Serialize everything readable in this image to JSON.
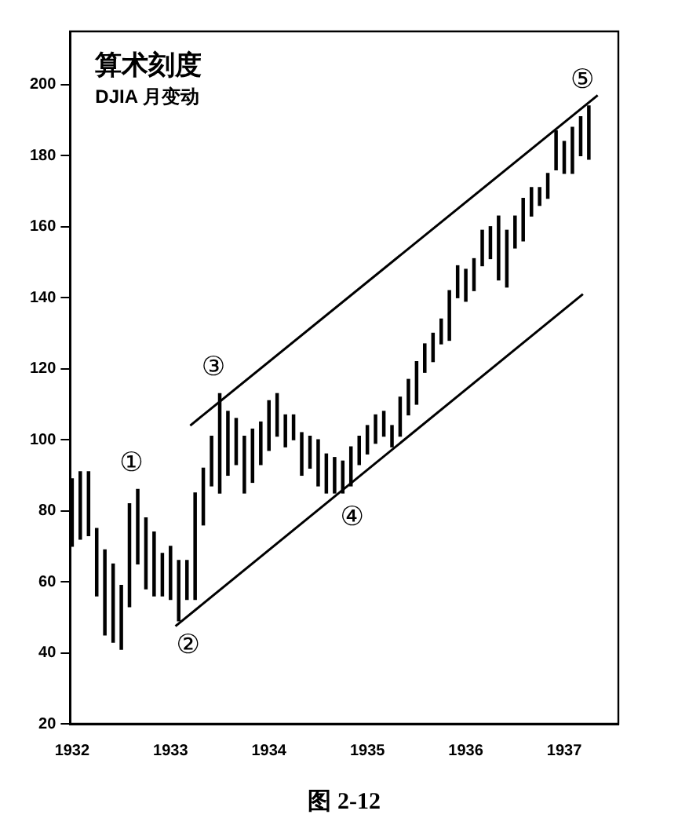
{
  "chart_data": {
    "type": "bar",
    "title": "算术刻度",
    "subtitle": "DJIA 月变动",
    "annotations": [
      {
        "text": "①",
        "x": 1932.667,
        "y": 86
      },
      {
        "text": "②",
        "x": 1933.083,
        "y": 49
      },
      {
        "text": "③",
        "x": 1933.5,
        "y": 113
      },
      {
        "text": "④",
        "x": 1934.75,
        "y": 85
      },
      {
        "text": "⑤",
        "x": 1937.25,
        "y": 194
      },
      "图 2-12"
    ],
    "x": [
      1932,
      1932.083,
      1932.167,
      1932.25,
      1932.333,
      1932.417,
      1932.5,
      1932.583,
      1932.667,
      1932.75,
      1932.833,
      1932.917,
      1933,
      1933.083,
      1933.167,
      1933.25,
      1933.333,
      1933.417,
      1933.5,
      1933.583,
      1933.667,
      1933.75,
      1933.833,
      1933.917,
      1934,
      1934.083,
      1934.167,
      1934.25,
      1934.333,
      1934.417,
      1934.5,
      1934.583,
      1934.667,
      1934.75,
      1934.833,
      1934.917,
      1935,
      1935.083,
      1935.167,
      1935.25,
      1935.333,
      1935.417,
      1935.5,
      1935.583,
      1935.667,
      1935.75,
      1935.833,
      1935.917,
      1936,
      1936.083,
      1936.167,
      1936.25,
      1936.333,
      1936.417,
      1936.5,
      1936.583,
      1936.667,
      1936.75,
      1936.833,
      1936.917,
      1937,
      1937.083,
      1937.167,
      1937.25
    ],
    "series": [
      {
        "color": "#000000",
        "base": [
          70,
          72,
          73,
          56,
          45,
          43,
          41,
          53,
          65,
          58,
          56,
          56,
          55,
          49,
          55,
          55,
          76,
          87,
          85,
          90,
          93,
          85,
          88,
          93,
          97,
          101,
          98,
          100,
          90,
          92,
          87,
          85,
          85,
          85,
          87,
          93,
          96,
          99,
          101,
          98,
          101,
          107,
          110,
          119,
          122,
          127,
          128,
          140,
          139,
          142,
          149,
          151,
          145,
          143,
          154,
          156,
          163,
          166,
          168,
          176,
          175,
          175,
          180,
          179
        ],
        "values": [
          19,
          19,
          18,
          19,
          24,
          22,
          18,
          29,
          21,
          20,
          18,
          12,
          15,
          17,
          11,
          30,
          16,
          14,
          28,
          18,
          13,
          16,
          15,
          12,
          14,
          12,
          9,
          7,
          12,
          9,
          13,
          11,
          10,
          9,
          11,
          8,
          8,
          8,
          7,
          6,
          11,
          10,
          12,
          8,
          8,
          7,
          14,
          9,
          9,
          9,
          10,
          9,
          18,
          16,
          9,
          12,
          8,
          5,
          7,
          11,
          9,
          13,
          11,
          15
        ]
      },
      {
        "type": "line",
        "color": "#000000",
        "x": [
          1933.2,
          1937.34
        ],
        "values": [
          104,
          197
        ]
      },
      {
        "type": "line",
        "color": "#000000",
        "x": [
          1933.05,
          1937.19
        ],
        "values": [
          47.5,
          141
        ]
      }
    ],
    "xlim": [
      1931.98,
      1937.55
    ],
    "xticks": [
      1932,
      1933,
      1934,
      1935,
      1936,
      1937
    ],
    "ylim": [
      20,
      215
    ],
    "yticks": [
      20,
      40,
      60,
      80,
      100,
      120,
      140,
      160,
      180,
      200
    ],
    "grid": false,
    "legend": false,
    "marker": "none"
  }
}
